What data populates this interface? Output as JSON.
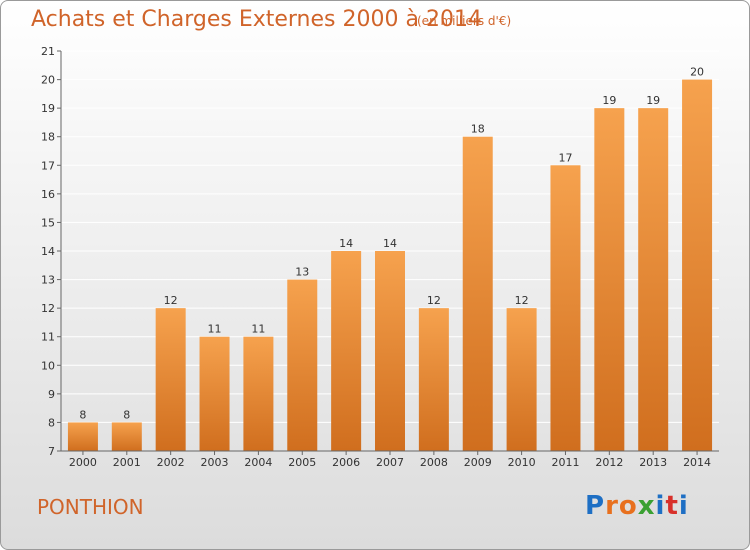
{
  "header": {
    "title": "Achats et Charges Externes 2000 à 2014",
    "subtitle": "(en milliers d'€)"
  },
  "footer": {
    "commune": "PONTHION",
    "logo": "Proxiti"
  },
  "colors": {
    "title": "#d0642a",
    "bar_top": "#f6a24e",
    "bar_bottom": "#d06e1e",
    "grid": "#ffffff",
    "axis": "#666666",
    "logo": [
      "#1e6fc4",
      "#e8701e",
      "#e8701e",
      "#3aa032",
      "#1e6fc4",
      "#d8302a",
      "#1e6fc4"
    ]
  },
  "chart_data": {
    "type": "bar",
    "title": "Achats et Charges Externes 2000 à 2014",
    "subtitle": "(en milliers d'€)",
    "xlabel": "",
    "ylabel": "",
    "categories": [
      "2000",
      "2001",
      "2002",
      "2003",
      "2004",
      "2005",
      "2006",
      "2007",
      "2008",
      "2009",
      "2010",
      "2011",
      "2012",
      "2013",
      "2014"
    ],
    "values": [
      8,
      8,
      12,
      11,
      11,
      13,
      14,
      14,
      12,
      18,
      12,
      17,
      19,
      19,
      20
    ],
    "ylim": [
      7,
      21
    ],
    "yticks": [
      7,
      8,
      9,
      10,
      11,
      12,
      13,
      14,
      15,
      16,
      17,
      18,
      19,
      20,
      21
    ],
    "grid": true,
    "legend": "none"
  }
}
